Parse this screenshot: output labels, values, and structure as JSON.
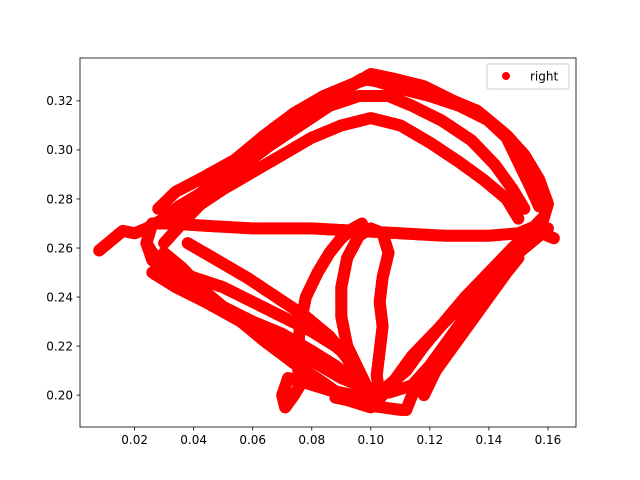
{
  "chart_data": {
    "type": "scatter",
    "title": "",
    "xlabel": "",
    "ylabel": "",
    "xlim": [
      0.0015,
      0.1695
    ],
    "ylim": [
      0.187,
      0.3375
    ],
    "x_ticks": [
      {
        "value": 0.02,
        "label": "0.02"
      },
      {
        "value": 0.04,
        "label": "0.04"
      },
      {
        "value": 0.06,
        "label": "0.06"
      },
      {
        "value": 0.08,
        "label": "0.08"
      },
      {
        "value": 0.1,
        "label": "0.10"
      },
      {
        "value": 0.12,
        "label": "0.12"
      },
      {
        "value": 0.14,
        "label": "0.14"
      },
      {
        "value": 0.16,
        "label": "0.16"
      }
    ],
    "y_ticks": [
      {
        "value": 0.2,
        "label": "0.20"
      },
      {
        "value": 0.22,
        "label": "0.22"
      },
      {
        "value": 0.24,
        "label": "0.24"
      },
      {
        "value": 0.26,
        "label": "0.26"
      },
      {
        "value": 0.28,
        "label": "0.28"
      },
      {
        "value": 0.3,
        "label": "0.30"
      },
      {
        "value": 0.32,
        "label": "0.32"
      }
    ],
    "grid": false,
    "legend": {
      "position": "top-right",
      "entries": [
        {
          "label": "right",
          "color": "#ff0000"
        }
      ]
    },
    "series": [
      {
        "name": "right",
        "color": "#ff0000",
        "marker": "circle",
        "strokes": [
          [
            [
              0.008,
              0.259
            ],
            [
              0.012,
              0.263
            ],
            [
              0.016,
              0.267
            ],
            [
              0.02,
              0.266
            ],
            [
              0.024,
              0.268
            ],
            [
              0.03,
              0.272
            ],
            [
              0.035,
              0.277
            ],
            [
              0.042,
              0.282
            ],
            [
              0.05,
              0.29
            ],
            [
              0.058,
              0.298
            ],
            [
              0.066,
              0.305
            ],
            [
              0.075,
              0.312
            ],
            [
              0.083,
              0.318
            ],
            [
              0.09,
              0.324
            ],
            [
              0.097,
              0.329
            ],
            [
              0.102,
              0.328
            ],
            [
              0.11,
              0.325
            ],
            [
              0.12,
              0.322
            ],
            [
              0.13,
              0.318
            ],
            [
              0.14,
              0.312
            ],
            [
              0.146,
              0.306
            ],
            [
              0.152,
              0.298
            ],
            [
              0.157,
              0.288
            ],
            [
              0.16,
              0.278
            ],
            [
              0.158,
              0.27
            ]
          ],
          [
            [
              0.158,
              0.27
            ],
            [
              0.15,
              0.266
            ],
            [
              0.14,
              0.265
            ],
            [
              0.125,
              0.265
            ],
            [
              0.11,
              0.266
            ],
            [
              0.095,
              0.267
            ],
            [
              0.08,
              0.268
            ],
            [
              0.06,
              0.268
            ],
            [
              0.045,
              0.269
            ],
            [
              0.032,
              0.27
            ],
            [
              0.026,
              0.27
            ]
          ],
          [
            [
              0.026,
              0.27
            ],
            [
              0.024,
              0.262
            ],
            [
              0.026,
              0.255
            ],
            [
              0.032,
              0.248
            ],
            [
              0.04,
              0.242
            ],
            [
              0.05,
              0.236
            ],
            [
              0.06,
              0.23
            ],
            [
              0.07,
              0.225
            ],
            [
              0.08,
              0.218
            ],
            [
              0.088,
              0.212
            ],
            [
              0.094,
              0.206
            ],
            [
              0.098,
              0.202
            ],
            [
              0.102,
              0.199
            ]
          ],
          [
            [
              0.102,
              0.199
            ],
            [
              0.106,
              0.204
            ],
            [
              0.112,
              0.21
            ],
            [
              0.118,
              0.22
            ],
            [
              0.125,
              0.23
            ],
            [
              0.132,
              0.24
            ],
            [
              0.14,
              0.25
            ],
            [
              0.148,
              0.26
            ],
            [
              0.154,
              0.267
            ],
            [
              0.158,
              0.272
            ]
          ],
          [
            [
              0.03,
              0.262
            ],
            [
              0.036,
              0.27
            ],
            [
              0.044,
              0.28
            ],
            [
              0.052,
              0.29
            ],
            [
              0.062,
              0.3
            ],
            [
              0.072,
              0.31
            ],
            [
              0.082,
              0.318
            ],
            [
              0.092,
              0.325
            ],
            [
              0.1,
              0.331
            ],
            [
              0.108,
              0.329
            ],
            [
              0.118,
              0.326
            ],
            [
              0.128,
              0.32
            ],
            [
              0.138,
              0.314
            ],
            [
              0.146,
              0.305
            ],
            [
              0.15,
              0.295
            ],
            [
              0.154,
              0.285
            ],
            [
              0.157,
              0.277
            ]
          ],
          [
            [
              0.16,
              0.268
            ],
            [
              0.152,
              0.262
            ],
            [
              0.145,
              0.253
            ],
            [
              0.138,
              0.244
            ],
            [
              0.13,
              0.236
            ],
            [
              0.122,
              0.226
            ],
            [
              0.114,
              0.216
            ],
            [
              0.108,
              0.206
            ],
            [
              0.104,
              0.2
            ],
            [
              0.1,
              0.195
            ],
            [
              0.092,
              0.198
            ],
            [
              0.084,
              0.205
            ],
            [
              0.074,
              0.213
            ],
            [
              0.064,
              0.222
            ],
            [
              0.054,
              0.232
            ],
            [
              0.044,
              0.242
            ],
            [
              0.036,
              0.252
            ],
            [
              0.03,
              0.258
            ]
          ],
          [
            [
              0.038,
              0.262
            ],
            [
              0.048,
              0.255
            ],
            [
              0.058,
              0.248
            ],
            [
              0.068,
              0.24
            ],
            [
              0.078,
              0.232
            ],
            [
              0.086,
              0.224
            ],
            [
              0.092,
              0.215
            ],
            [
              0.096,
              0.206
            ],
            [
              0.1,
              0.2
            ]
          ],
          [
            [
              0.1,
              0.2
            ],
            [
              0.096,
              0.21
            ],
            [
              0.092,
              0.22
            ],
            [
              0.09,
              0.232
            ],
            [
              0.09,
              0.244
            ],
            [
              0.092,
              0.256
            ],
            [
              0.096,
              0.265
            ],
            [
              0.1,
              0.268
            ],
            [
              0.104,
              0.266
            ],
            [
              0.106,
              0.258
            ]
          ],
          [
            [
              0.106,
              0.258
            ],
            [
              0.104,
              0.248
            ],
            [
              0.103,
              0.238
            ],
            [
              0.104,
              0.228
            ],
            [
              0.103,
              0.218
            ],
            [
              0.102,
              0.208
            ],
            [
              0.103,
              0.2
            ]
          ],
          [
            [
              0.103,
              0.2
            ],
            [
              0.094,
              0.2
            ],
            [
              0.086,
              0.202
            ],
            [
              0.078,
              0.205
            ],
            [
              0.072,
              0.207
            ],
            [
              0.07,
              0.2
            ],
            [
              0.071,
              0.195
            ],
            [
              0.074,
              0.2
            ],
            [
              0.076,
              0.204
            ]
          ],
          [
            [
              0.076,
              0.204
            ],
            [
              0.075,
              0.215
            ],
            [
              0.076,
              0.228
            ],
            [
              0.078,
              0.24
            ],
            [
              0.082,
              0.25
            ],
            [
              0.086,
              0.258
            ],
            [
              0.09,
              0.264
            ],
            [
              0.094,
              0.268
            ],
            [
              0.097,
              0.27
            ]
          ],
          [
            [
              0.088,
              0.199
            ],
            [
              0.092,
              0.198
            ],
            [
              0.098,
              0.196
            ],
            [
              0.104,
              0.195
            ],
            [
              0.11,
              0.194
            ],
            [
              0.112,
              0.194
            ]
          ],
          [
            [
              0.112,
              0.194
            ],
            [
              0.114,
              0.2
            ],
            [
              0.118,
              0.208
            ],
            [
              0.124,
              0.218
            ],
            [
              0.13,
              0.228
            ],
            [
              0.136,
              0.238
            ],
            [
              0.142,
              0.248
            ],
            [
              0.148,
              0.256
            ],
            [
              0.154,
              0.262
            ],
            [
              0.158,
              0.266
            ],
            [
              0.162,
              0.264
            ]
          ],
          [
            [
              0.04,
              0.276
            ],
            [
              0.05,
              0.284
            ],
            [
              0.06,
              0.291
            ],
            [
              0.07,
              0.298
            ],
            [
              0.08,
              0.305
            ],
            [
              0.09,
              0.31
            ],
            [
              0.1,
              0.313
            ],
            [
              0.11,
              0.31
            ],
            [
              0.12,
              0.303
            ],
            [
              0.13,
              0.295
            ],
            [
              0.138,
              0.288
            ],
            [
              0.146,
              0.28
            ],
            [
              0.15,
              0.272
            ]
          ],
          [
            [
              0.028,
              0.276
            ],
            [
              0.034,
              0.283
            ],
            [
              0.042,
              0.288
            ],
            [
              0.054,
              0.296
            ],
            [
              0.064,
              0.306
            ],
            [
              0.074,
              0.315
            ],
            [
              0.084,
              0.322
            ],
            [
              0.094,
              0.327
            ],
            [
              0.102,
              0.33
            ],
            [
              0.112,
              0.327
            ],
            [
              0.124,
              0.322
            ],
            [
              0.136,
              0.316
            ],
            [
              0.144,
              0.308
            ],
            [
              0.15,
              0.3
            ]
          ],
          [
            [
              0.026,
              0.25
            ],
            [
              0.034,
              0.244
            ],
            [
              0.044,
              0.238
            ],
            [
              0.056,
              0.23
            ],
            [
              0.068,
              0.222
            ],
            [
              0.08,
              0.214
            ],
            [
              0.09,
              0.207
            ],
            [
              0.098,
              0.203
            ],
            [
              0.106,
              0.201
            ],
            [
              0.114,
              0.204
            ],
            [
              0.12,
              0.212
            ],
            [
              0.126,
              0.222
            ],
            [
              0.132,
              0.232
            ],
            [
              0.138,
              0.242
            ],
            [
              0.144,
              0.252
            ],
            [
              0.15,
              0.26
            ]
          ],
          [
            [
              0.03,
              0.27
            ],
            [
              0.036,
              0.276
            ],
            [
              0.046,
              0.284
            ],
            [
              0.056,
              0.293
            ],
            [
              0.066,
              0.302
            ],
            [
              0.076,
              0.31
            ],
            [
              0.086,
              0.318
            ],
            [
              0.096,
              0.322
            ],
            [
              0.106,
              0.322
            ],
            [
              0.114,
              0.318
            ],
            [
              0.124,
              0.312
            ],
            [
              0.134,
              0.304
            ],
            [
              0.142,
              0.294
            ],
            [
              0.148,
              0.284
            ],
            [
              0.152,
              0.276
            ]
          ],
          [
            [
              0.118,
              0.2
            ],
            [
              0.122,
              0.21
            ],
            [
              0.128,
              0.22
            ],
            [
              0.134,
              0.23
            ],
            [
              0.14,
              0.24
            ],
            [
              0.146,
              0.25
            ],
            [
              0.15,
              0.256
            ]
          ],
          [
            [
              0.024,
              0.262
            ],
            [
              0.026,
              0.258
            ],
            [
              0.032,
              0.252
            ],
            [
              0.04,
              0.248
            ],
            [
              0.05,
              0.244
            ],
            [
              0.06,
              0.238
            ],
            [
              0.07,
              0.232
            ],
            [
              0.08,
              0.226
            ],
            [
              0.088,
              0.22
            ],
            [
              0.094,
              0.214
            ]
          ]
        ]
      }
    ]
  }
}
